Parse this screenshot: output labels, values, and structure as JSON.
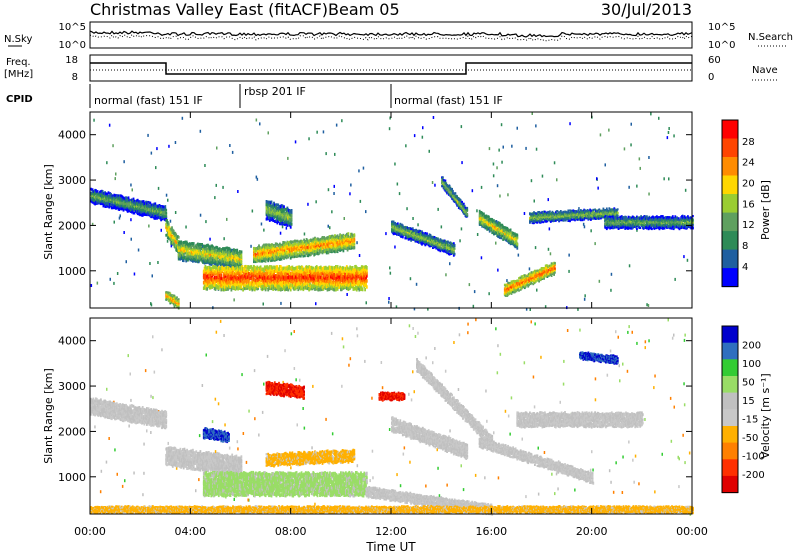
{
  "header": {
    "title": "Christmas Valley East (fitACF)",
    "beam": "Beam 05",
    "date": "30/Jul/2013"
  },
  "top_panels": {
    "nsky_label": "N.Sky",
    "nsearch_label": "N.Search",
    "noise_ticks": [
      "10^5",
      "10^0"
    ],
    "freq_label_1": "Freq.",
    "freq_label_2": "[MHz]",
    "freq_ticks": [
      "18",
      "8"
    ],
    "nave_label": "Nave",
    "nave_ticks": [
      "60",
      "0"
    ],
    "cpid_label": "CPID",
    "cpid_segments": [
      {
        "label": "normal (fast) 151 IF",
        "start_h": 0,
        "end_h": 6
      },
      {
        "label": "rbsp 201 IF",
        "start_h": 6,
        "end_h": 12
      },
      {
        "label": "normal (fast) 151 IF",
        "start_h": 12,
        "end_h": 24
      }
    ]
  },
  "colors": {
    "power_scale": [
      "#0000ff",
      "#1f5fa0",
      "#2e8b57",
      "#5fa05f",
      "#9acd32",
      "#ffd700",
      "#ff8c00",
      "#ff4500",
      "#ff0000"
    ],
    "velocity_scale": [
      "#0000cc",
      "#2f6fbf",
      "#33cc33",
      "#99dd66",
      "#c0c0c0",
      "#c8c8c8",
      "#ffb000",
      "#ff8000",
      "#ff3000",
      "#e00000"
    ]
  },
  "chart_data": [
    {
      "type": "heatmap",
      "name": "Power",
      "ylabel": "Slant Range [km]",
      "ylim": [
        180,
        4500
      ],
      "yticks": [
        "1000",
        "2000",
        "3000",
        "4000"
      ],
      "colorbar_label": "Power [dB]",
      "colorbar_ticks": [
        "28",
        "24",
        "20",
        "16",
        "12",
        "8",
        "4"
      ],
      "clim": [
        0,
        32
      ],
      "bands": [
        {
          "t0": 0.0,
          "t1": 3.0,
          "r0": 2700,
          "r1": 2300,
          "w": 300,
          "v": 14
        },
        {
          "t0": 3.0,
          "t1": 3.5,
          "r0": 2000,
          "r1": 1600,
          "w": 350,
          "v": 22
        },
        {
          "t0": 3.5,
          "t1": 6.0,
          "r0": 1500,
          "r1": 1300,
          "w": 400,
          "v": 20
        },
        {
          "t0": 4.5,
          "t1": 11.0,
          "r0": 900,
          "r1": 900,
          "w": 500,
          "v": 28
        },
        {
          "t0": 6.5,
          "t1": 10.5,
          "r0": 1400,
          "r1": 1700,
          "w": 350,
          "v": 24
        },
        {
          "t0": 7.0,
          "t1": 8.0,
          "r0": 2400,
          "r1": 2200,
          "w": 400,
          "v": 16
        },
        {
          "t0": 12.0,
          "t1": 14.5,
          "r0": 2000,
          "r1": 1500,
          "w": 250,
          "v": 16
        },
        {
          "t0": 14.0,
          "t1": 15.0,
          "r0": 3000,
          "r1": 2300,
          "w": 200,
          "v": 16
        },
        {
          "t0": 15.5,
          "t1": 17.0,
          "r0": 2200,
          "r1": 1700,
          "w": 300,
          "v": 20
        },
        {
          "t0": 16.5,
          "t1": 18.5,
          "r0": 600,
          "r1": 1100,
          "w": 250,
          "v": 26
        },
        {
          "t0": 17.5,
          "t1": 21.0,
          "r0": 2200,
          "r1": 2300,
          "w": 200,
          "v": 16
        },
        {
          "t0": 20.5,
          "t1": 24.0,
          "r0": 2100,
          "r1": 2100,
          "w": 250,
          "v": 14
        },
        {
          "t0": 3.0,
          "t1": 3.5,
          "r0": 500,
          "r1": 300,
          "w": 200,
          "v": 24
        }
      ]
    },
    {
      "type": "heatmap",
      "name": "Velocity",
      "ylabel": "Slant Range [km]",
      "ylim": [
        180,
        4500
      ],
      "yticks": [
        "1000",
        "2000",
        "3000",
        "4000"
      ],
      "colorbar_label": "Velocity [m s⁻¹]",
      "colorbar_ticks": [
        "200",
        "100",
        "50",
        "15",
        "-15",
        "-50",
        "-100",
        "-200"
      ],
      "clim": [
        -250,
        250
      ],
      "xlabel": "Time UT",
      "xticks": [
        "00:00",
        "04:00",
        "08:00",
        "12:00",
        "16:00",
        "20:00",
        "00:00"
      ],
      "xlim_hours": [
        0,
        24
      ],
      "bands": [
        {
          "t0": 0.0,
          "t1": 3.0,
          "r0": 2600,
          "r1": 2300,
          "w": 350,
          "v": 0
        },
        {
          "t0": 3.0,
          "t1": 6.0,
          "r0": 1500,
          "r1": 1300,
          "w": 400,
          "v": 0
        },
        {
          "t0": 4.5,
          "t1": 11.0,
          "r0": 900,
          "r1": 900,
          "w": 500,
          "v": 60
        },
        {
          "t0": 7.0,
          "t1": 10.5,
          "r0": 1400,
          "r1": 1500,
          "w": 250,
          "v": -60
        },
        {
          "t0": 11.0,
          "t1": 16.0,
          "r0": 700,
          "r1": 300,
          "w": 200,
          "v": 0
        },
        {
          "t0": 12.0,
          "t1": 15.0,
          "r0": 2200,
          "r1": 1600,
          "w": 300,
          "v": 0
        },
        {
          "t0": 13.0,
          "t1": 16.0,
          "r0": 3500,
          "r1": 1800,
          "w": 250,
          "v": 0
        },
        {
          "t0": 15.5,
          "t1": 20.0,
          "r0": 1800,
          "r1": 1000,
          "w": 200,
          "v": 0
        },
        {
          "t0": 17.0,
          "t1": 22.0,
          "r0": 2300,
          "r1": 2300,
          "w": 300,
          "v": 0
        },
        {
          "t0": 0.0,
          "t1": 24.0,
          "r0": 300,
          "r1": 300,
          "w": 120,
          "v": -60
        },
        {
          "t0": 4.5,
          "t1": 5.5,
          "r0": 2000,
          "r1": 1900,
          "w": 200,
          "v": 200
        },
        {
          "t0": 7.0,
          "t1": 8.5,
          "r0": 3000,
          "r1": 2900,
          "w": 250,
          "v": -200
        },
        {
          "t0": 11.5,
          "t1": 12.5,
          "r0": 2800,
          "r1": 2800,
          "w": 150,
          "v": -200
        },
        {
          "t0": 19.5,
          "t1": 21.0,
          "r0": 3700,
          "r1": 3600,
          "w": 150,
          "v": 200
        }
      ]
    }
  ]
}
